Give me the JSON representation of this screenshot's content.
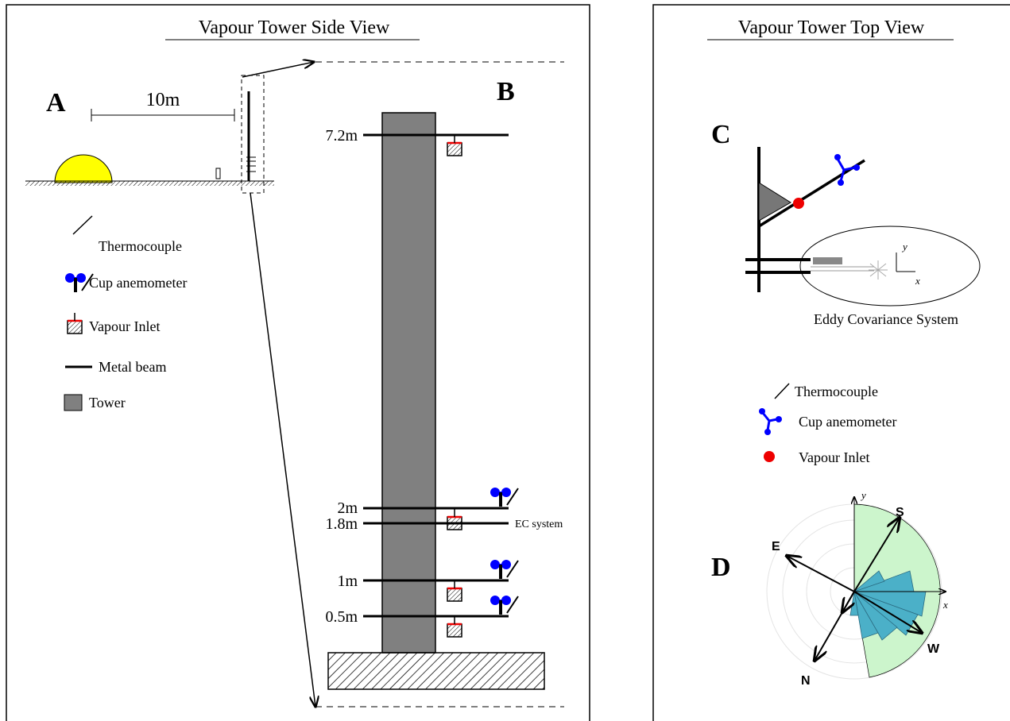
{
  "side_view": {
    "title": "Vapour Tower Side View",
    "label_a": "A",
    "scale": "10m",
    "label_b": "B",
    "heights": [
      "7.2m",
      "2m",
      "1.8m",
      "1m",
      "0.5m"
    ],
    "ec_label": "EC system",
    "legend": [
      "Thermocouple",
      "Cup anemometer",
      "Vapour Inlet",
      "Metal beam",
      "Tower"
    ]
  },
  "top_view": {
    "title": "Vapour Tower Top View",
    "label_c": "C",
    "axis_y": "y",
    "axis_x": "x",
    "ec_caption": "Eddy Covariance System",
    "legend": [
      "Thermocouple",
      "Cup anemometer",
      "Vapour Inlet"
    ],
    "label_d": "D",
    "rose": {
      "axis_y": "y",
      "axis_x": "x",
      "directions": [
        "S",
        "E",
        "W",
        "N"
      ]
    }
  }
}
